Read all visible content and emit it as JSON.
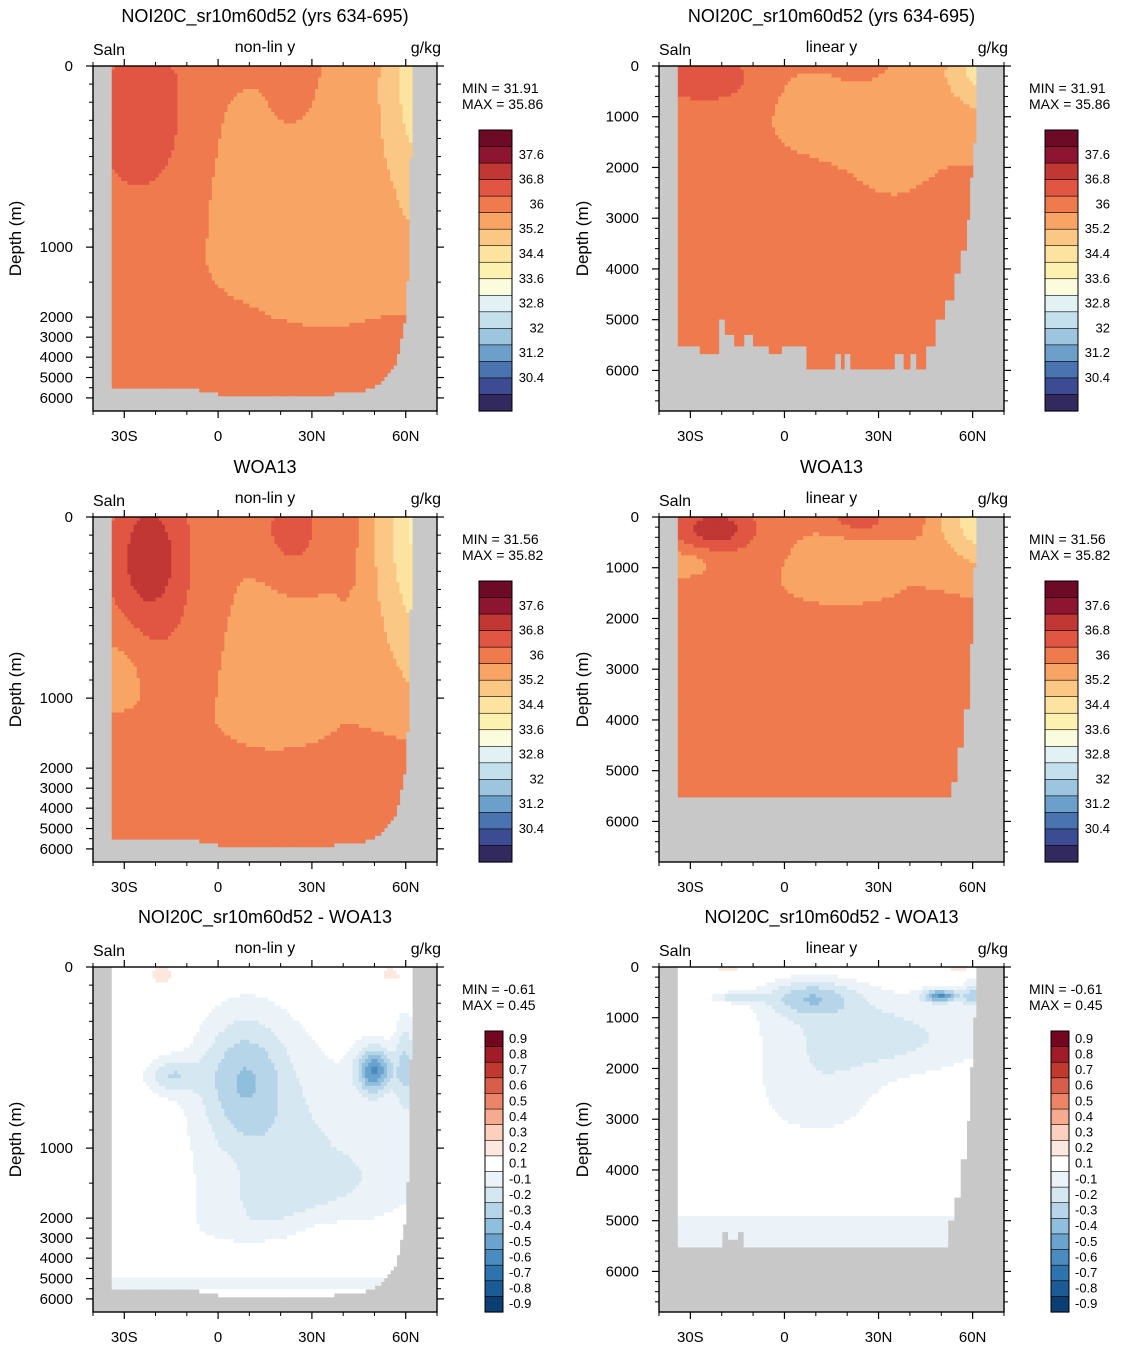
{
  "palettes": {
    "salinity": [
      "#32295f",
      "#3d4c92",
      "#4a74b0",
      "#6c9fc9",
      "#9dc5de",
      "#c4e0ec",
      "#e2f1f3",
      "#fbfbde",
      "#fdf1b0",
      "#fde3a0",
      "#fbc785",
      "#f8a464",
      "#ef7a4e",
      "#e05643",
      "#c13734",
      "#8e1531",
      "#6d0a26"
    ],
    "anomaly": [
      "#0b3f73",
      "#1c5b95",
      "#2f73ae",
      "#4b8cc0",
      "#6ba3cf",
      "#90bfdd",
      "#b7d5e9",
      "#d5e7f1",
      "#ebf3f8",
      "#ffffff",
      "#fde8df",
      "#fbd0bd",
      "#f6ab91",
      "#ec8468",
      "#d95d4b",
      "#c0392f",
      "#a11c28",
      "#730720"
    ],
    "land": "#c8c8c8"
  },
  "salinity_levels": [
    "37.6",
    "36.8",
    "36",
    "35.2",
    "34.4",
    "33.6",
    "32.8",
    "32",
    "31.2",
    "30.4"
  ],
  "anomaly_levels": [
    "0.9",
    "0.8",
    "0.7",
    "0.6",
    "0.5",
    "0.4",
    "0.3",
    "0.2",
    "0.1",
    "-0.1",
    "-0.2",
    "-0.3",
    "-0.4",
    "-0.5",
    "-0.6",
    "-0.7",
    "-0.8",
    "-0.9"
  ],
  "chart_data": [
    {
      "id": "p11",
      "type": "heatmap",
      "title": "NOI20C_sr10m60d52 (yrs 634-695)",
      "var": "Saln",
      "axis_mode": "non-lin y",
      "units": "g/kg",
      "min": "MIN =  31.91",
      "max": "MAX =  35.86",
      "palette": "salinity",
      "legend": "salinity_levels",
      "xlabel": "",
      "ylabel": "Depth (m)",
      "xticks": [
        "30S",
        "0",
        "30N",
        "60N"
      ],
      "xlim": [
        -40,
        70
      ],
      "ylim": [
        0,
        6500
      ],
      "yticks": [
        "0",
        "1000",
        "2000",
        "3000",
        "4000",
        "5000",
        "6000"
      ],
      "field": "model",
      "values_min": 31.91,
      "values_max": 35.86
    },
    {
      "id": "p12",
      "type": "heatmap",
      "title": "NOI20C_sr10m60d52 (yrs 634-695)",
      "var": "Saln",
      "axis_mode": "linear y",
      "units": "g/kg",
      "min": "MIN =  31.91",
      "max": "MAX =  35.86",
      "palette": "salinity",
      "legend": "salinity_levels",
      "xlabel": "",
      "ylabel": "Depth (m)",
      "xticks": [
        "30S",
        "0",
        "30N",
        "60N"
      ],
      "xlim": [
        -40,
        70
      ],
      "ylim": [
        0,
        6800
      ],
      "yticks": [
        "0",
        "1000",
        "2000",
        "3000",
        "4000",
        "5000",
        "6000"
      ],
      "field": "model",
      "values_min": 31.91,
      "values_max": 35.86
    },
    {
      "id": "p21",
      "type": "heatmap",
      "title": "WOA13",
      "var": "Saln",
      "axis_mode": "non-lin y",
      "units": "g/kg",
      "min": "MIN =  31.56",
      "max": "MAX =  35.82",
      "palette": "salinity",
      "legend": "salinity_levels",
      "xlabel": "",
      "ylabel": "Depth (m)",
      "xticks": [
        "30S",
        "0",
        "30N",
        "60N"
      ],
      "xlim": [
        -40,
        70
      ],
      "ylim": [
        0,
        6500
      ],
      "yticks": [
        "0",
        "1000",
        "2000",
        "3000",
        "4000",
        "5000",
        "6000"
      ],
      "field": "obs",
      "values_min": 31.56,
      "values_max": 35.82
    },
    {
      "id": "p22",
      "type": "heatmap",
      "title": "WOA13",
      "var": "Saln",
      "axis_mode": "linear y",
      "units": "g/kg",
      "min": "MIN =  31.56",
      "max": "MAX =  35.82",
      "palette": "salinity",
      "legend": "salinity_levels",
      "xlabel": "",
      "ylabel": "Depth (m)",
      "xticks": [
        "30S",
        "0",
        "30N",
        "60N"
      ],
      "xlim": [
        -40,
        70
      ],
      "ylim": [
        0,
        6800
      ],
      "yticks": [
        "0",
        "1000",
        "2000",
        "3000",
        "4000",
        "5000",
        "6000"
      ],
      "field": "obs",
      "values_min": 31.56,
      "values_max": 35.82
    },
    {
      "id": "p31",
      "type": "heatmap",
      "title": "NOI20C_sr10m60d52 - WOA13",
      "var": "Saln",
      "axis_mode": "non-lin y",
      "units": "g/kg",
      "min": "MIN =  -0.61",
      "max": "MAX =   0.45",
      "palette": "anomaly",
      "legend": "anomaly_levels",
      "xlabel": "",
      "ylabel": "Depth (m)",
      "xticks": [
        "30S",
        "0",
        "30N",
        "60N"
      ],
      "xlim": [
        -40,
        70
      ],
      "ylim": [
        0,
        6500
      ],
      "yticks": [
        "0",
        "1000",
        "2000",
        "3000",
        "4000",
        "5000",
        "6000"
      ],
      "field": "diff",
      "values_min": -0.61,
      "values_max": 0.45
    },
    {
      "id": "p32",
      "type": "heatmap",
      "title": "NOI20C_sr10m60d52 - WOA13",
      "var": "Saln",
      "axis_mode": "linear y",
      "units": "g/kg",
      "min": "MIN =  -0.61",
      "max": "MAX =   0.45",
      "palette": "anomaly",
      "legend": "anomaly_levels",
      "xlabel": "",
      "ylabel": "Depth (m)",
      "xticks": [
        "30S",
        "0",
        "30N",
        "60N"
      ],
      "xlim": [
        -40,
        70
      ],
      "ylim": [
        0,
        6800
      ],
      "yticks": [
        "0",
        "1000",
        "2000",
        "3000",
        "4000",
        "5000",
        "6000"
      ],
      "field": "diff",
      "values_min": -0.61,
      "values_max": 0.45
    }
  ]
}
